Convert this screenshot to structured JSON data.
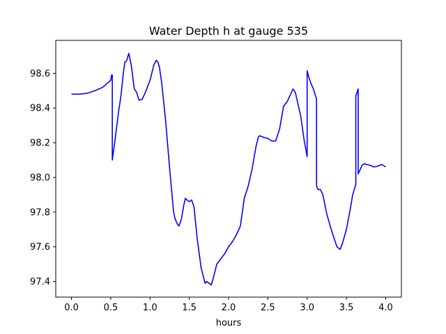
{
  "chart_data": {
    "type": "line",
    "title": "Water Depth h at gauge 535",
    "xlabel": "hours",
    "ylabel": "",
    "xlim": [
      -0.2,
      4.2
    ],
    "ylim": [
      97.31,
      98.79
    ],
    "xticks": [
      0.0,
      0.5,
      1.0,
      1.5,
      2.0,
      2.5,
      3.0,
      3.5,
      4.0
    ],
    "xtick_labels": [
      "0.0",
      "0.5",
      "1.0",
      "1.5",
      "2.0",
      "2.5",
      "3.0",
      "3.5",
      "4.0"
    ],
    "yticks": [
      97.4,
      97.6,
      97.8,
      98.0,
      98.2,
      98.4,
      98.6
    ],
    "ytick_labels": [
      "97.4",
      "97.6",
      "97.8",
      "98.0",
      "98.2",
      "98.4",
      "98.6"
    ],
    "grid": false,
    "series": [
      {
        "name": "",
        "color": "#0000ff",
        "x": [
          0.0,
          0.1,
          0.2,
          0.3,
          0.4,
          0.45,
          0.5,
          0.51,
          0.52,
          0.52,
          0.55,
          0.6,
          0.63,
          0.66,
          0.68,
          0.7,
          0.73,
          0.76,
          0.8,
          0.83,
          0.86,
          0.9,
          0.95,
          1.0,
          1.05,
          1.08,
          1.1,
          1.12,
          1.15,
          1.2,
          1.25,
          1.3,
          1.32,
          1.35,
          1.37,
          1.4,
          1.43,
          1.45,
          1.47,
          1.5,
          1.53,
          1.56,
          1.6,
          1.65,
          1.7,
          1.72,
          1.75,
          1.78,
          1.8,
          1.85,
          1.9,
          1.95,
          2.0,
          2.05,
          2.1,
          2.15,
          2.2,
          2.25,
          2.3,
          2.35,
          2.38,
          2.4,
          2.45,
          2.5,
          2.55,
          2.6,
          2.65,
          2.7,
          2.75,
          2.8,
          2.82,
          2.85,
          2.88,
          2.92,
          2.96,
          3.0,
          3.0,
          3.02,
          3.05,
          3.08,
          3.1,
          3.12,
          3.12,
          3.14,
          3.17,
          3.2,
          3.25,
          3.3,
          3.35,
          3.38,
          3.42,
          3.45,
          3.5,
          3.55,
          3.58,
          3.62,
          3.62,
          3.65,
          3.65,
          3.68,
          3.7,
          3.73,
          3.75,
          3.8,
          3.85,
          3.9,
          3.95,
          4.0
        ],
        "y": [
          98.48,
          98.48,
          98.485,
          98.5,
          98.52,
          98.54,
          98.56,
          98.59,
          98.59,
          98.1,
          98.2,
          98.38,
          98.47,
          98.6,
          98.665,
          98.67,
          98.715,
          98.65,
          98.51,
          98.49,
          98.445,
          98.45,
          98.5,
          98.56,
          98.65,
          98.675,
          98.665,
          98.635,
          98.54,
          98.32,
          98.05,
          97.8,
          97.76,
          97.73,
          97.72,
          97.76,
          97.84,
          97.88,
          97.87,
          97.86,
          97.87,
          97.83,
          97.65,
          97.48,
          97.39,
          97.4,
          97.39,
          97.38,
          97.41,
          97.5,
          97.53,
          97.56,
          97.6,
          97.63,
          97.67,
          97.72,
          97.88,
          97.95,
          98.05,
          98.18,
          98.235,
          98.24,
          98.23,
          98.225,
          98.21,
          98.21,
          98.28,
          98.41,
          98.44,
          98.49,
          98.51,
          98.49,
          98.43,
          98.35,
          98.22,
          98.12,
          98.615,
          98.58,
          98.54,
          98.51,
          98.48,
          98.45,
          97.95,
          97.93,
          97.93,
          97.9,
          97.79,
          97.71,
          97.64,
          97.6,
          97.585,
          97.62,
          97.7,
          97.82,
          97.9,
          97.96,
          98.47,
          98.51,
          98.02,
          98.05,
          98.07,
          98.08,
          98.075,
          98.07,
          98.06,
          98.065,
          98.075,
          98.06
        ]
      }
    ]
  }
}
